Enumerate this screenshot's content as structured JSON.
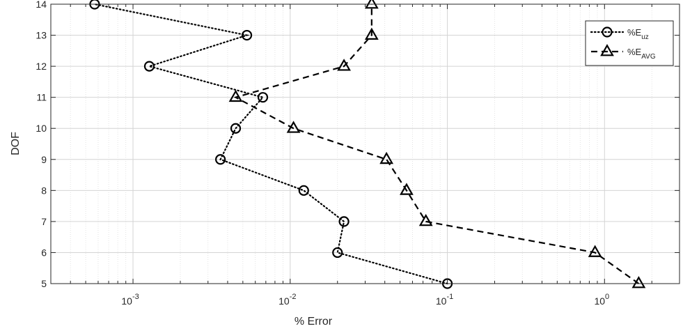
{
  "chart_data": {
    "type": "line",
    "xlabel": "% Error",
    "ylabel": "DOF",
    "x_scale": "log",
    "xlim": [
      0.0003,
      3
    ],
    "ylim": [
      5,
      14
    ],
    "x_ticks": [
      {
        "value": 0.001,
        "base": "10",
        "exp": "-3"
      },
      {
        "value": 0.01,
        "base": "10",
        "exp": "-2"
      },
      {
        "value": 0.1,
        "base": "10",
        "exp": "-1"
      },
      {
        "value": 1,
        "base": "10",
        "exp": "0"
      }
    ],
    "y_ticks": [
      5,
      6,
      7,
      8,
      9,
      10,
      11,
      12,
      13,
      14
    ],
    "grid": true,
    "legend_position": "top-right",
    "series": [
      {
        "name": "%E",
        "name_sub": "uz",
        "marker": "circle",
        "line_style": "dotted",
        "color": "#000000",
        "points": [
          {
            "x": 0.1,
            "y": 5
          },
          {
            "x": 0.02,
            "y": 6
          },
          {
            "x": 0.022,
            "y": 7
          },
          {
            "x": 0.0122,
            "y": 8
          },
          {
            "x": 0.0036,
            "y": 9
          },
          {
            "x": 0.0045,
            "y": 10
          },
          {
            "x": 0.0067,
            "y": 11
          },
          {
            "x": 0.00127,
            "y": 12
          },
          {
            "x": 0.0053,
            "y": 13
          },
          {
            "x": 0.00057,
            "y": 14
          }
        ]
      },
      {
        "name": "%E",
        "name_sub": "AVG",
        "marker": "triangle",
        "line_style": "dashed",
        "color": "#000000",
        "points": [
          {
            "x": 1.65,
            "y": 5
          },
          {
            "x": 0.87,
            "y": 6
          },
          {
            "x": 0.073,
            "y": 7
          },
          {
            "x": 0.055,
            "y": 8
          },
          {
            "x": 0.041,
            "y": 9
          },
          {
            "x": 0.0105,
            "y": 10
          },
          {
            "x": 0.0045,
            "y": 11
          },
          {
            "x": 0.022,
            "y": 12
          },
          {
            "x": 0.033,
            "y": 13
          },
          {
            "x": 0.033,
            "y": 14
          }
        ]
      }
    ]
  }
}
